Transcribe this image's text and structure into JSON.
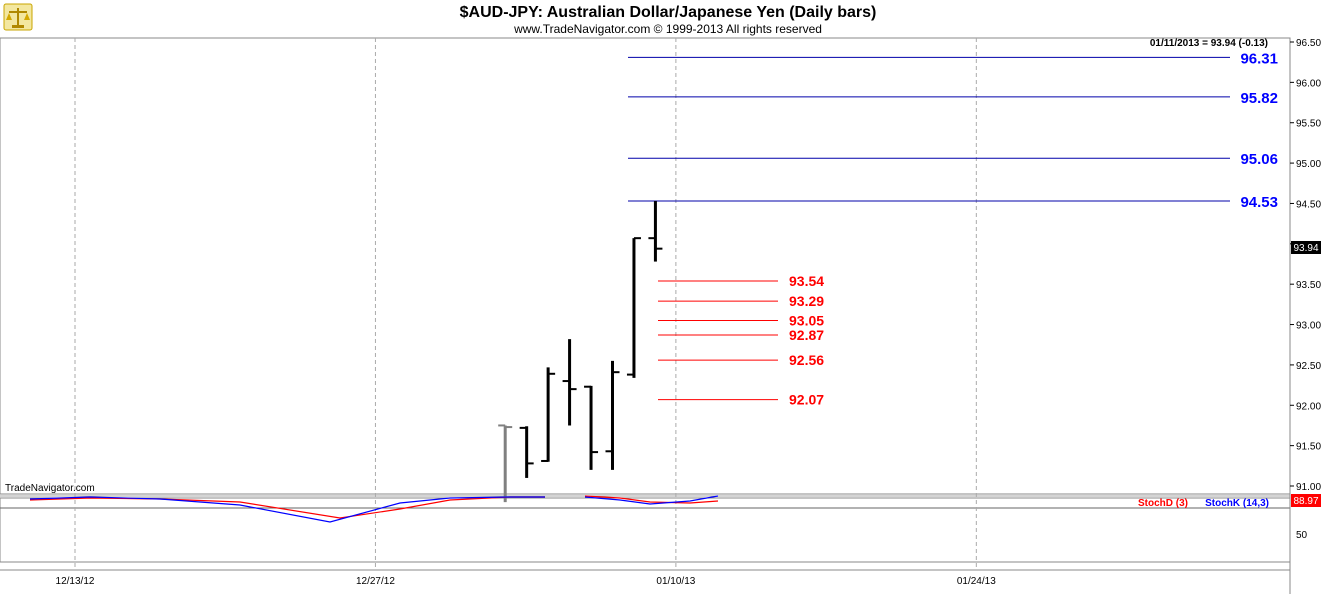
{
  "header": {
    "title": "$AUD-JPY:  Australian Dollar/Japanese Yen  (Daily bars)",
    "copyright": "www.TradeNavigator.com © 1999-2013 All rights reserved",
    "watermark": "TradeNavigator.com",
    "logo_icon": "scales-logo-icon"
  },
  "chart_data": {
    "type": "ohlc",
    "readout": "01/11/2013 = 93.94 (-0.13)",
    "last_price_label": "93.94",
    "price_axis": {
      "ylim": [
        90.8,
        96.6
      ],
      "ticks": [
        "91.00",
        "91.50",
        "92.00",
        "92.50",
        "93.00",
        "93.50",
        "94.00",
        "94.50",
        "95.00",
        "95.50",
        "96.00",
        "96.50"
      ]
    },
    "x_ticks": [
      "12/13/12",
      "12/27/12",
      "01/10/13",
      "01/24/13"
    ],
    "bars": [
      {
        "date": "01/02/13",
        "high": 91.75,
        "low": 90.8,
        "open": 91.75,
        "close": 91.73,
        "color": "#808080"
      },
      {
        "date": "01/03/13",
        "high": 91.74,
        "low": 91.1,
        "open": 91.72,
        "close": 91.28,
        "color": "#000000"
      },
      {
        "date": "01/04/13",
        "high": 92.47,
        "low": 91.3,
        "open": 91.31,
        "close": 92.39,
        "color": "#000000"
      },
      {
        "date": "01/07/13",
        "high": 92.82,
        "low": 91.75,
        "open": 92.3,
        "close": 92.2,
        "color": "#000000"
      },
      {
        "date": "01/08/13",
        "high": 92.24,
        "low": 91.2,
        "open": 92.23,
        "close": 91.42,
        "color": "#000000"
      },
      {
        "date": "01/09/13",
        "high": 92.55,
        "low": 91.2,
        "open": 91.43,
        "close": 92.41,
        "color": "#000000"
      },
      {
        "date": "01/10/13",
        "high": 94.07,
        "low": 92.34,
        "open": 92.38,
        "close": 94.07,
        "color": "#000000"
      },
      {
        "date": "01/11/13",
        "high": 94.53,
        "low": 93.78,
        "open": 94.07,
        "close": 93.94,
        "color": "#000000"
      }
    ],
    "levels_blue": [
      "96.31",
      "95.82",
      "95.06",
      "94.53"
    ],
    "levels_red": [
      "93.54",
      "93.29",
      "93.05",
      "92.87",
      "92.56",
      "92.07"
    ],
    "stochastic": {
      "legend_d": "StochD (3)",
      "legend_k": "StochK (14,3)",
      "value_label": "88.97",
      "axis_ticks": [
        "50"
      ],
      "ylim": [
        0,
        100
      ],
      "d_color": "#ff0000",
      "k_color": "#0000ff"
    }
  }
}
